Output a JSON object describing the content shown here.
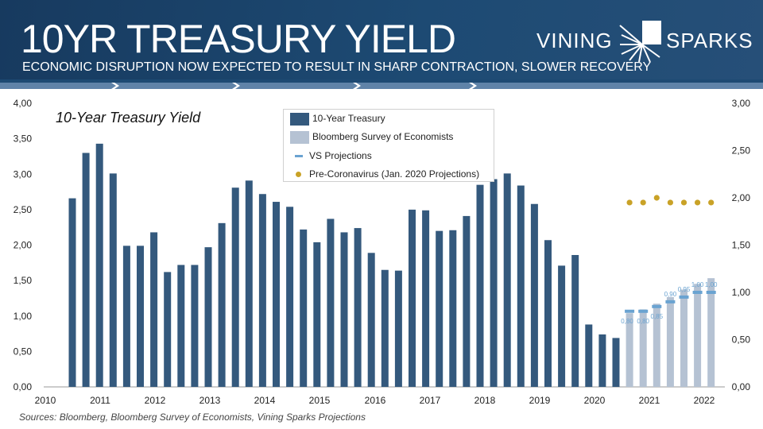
{
  "header": {
    "title": "10YR TREASURY YIELD",
    "subtitle": "ECONOMIC DISRUPTION NOW EXPECTED TO RESULT IN SHARP CONTRACTION, SLOWER RECOVERY",
    "logo_left": "VINING",
    "logo_right": "SPARKS"
  },
  "sources": "Sources: Bloomberg, Bloomberg Survey of Economists, Vining Sparks Projections",
  "colors": {
    "treasury": "#34597d",
    "survey": "#b5c2d3",
    "vs": "#6aa3d1",
    "pre": "#c9a227",
    "banner": "#1d4a73"
  },
  "chart_data": {
    "type": "bar",
    "title": "10-Year Treasury Yield",
    "legend": [
      "10-Year Treasury",
      "Bloomberg Survey of Economists",
      "VS Projections",
      "Pre-Coronavirus (Jan. 2020 Projections)"
    ],
    "left_axis": {
      "range": [
        0,
        4
      ],
      "ticks": [
        "0,00",
        "0,50",
        "1,00",
        "1,50",
        "2,00",
        "2,50",
        "3,00",
        "3,50",
        "4,00"
      ]
    },
    "right_axis": {
      "range": [
        0,
        3
      ],
      "ticks": [
        "0,00",
        "0,50",
        "1,00",
        "1,50",
        "2,00",
        "2,50",
        "3,00"
      ]
    },
    "x_axis": {
      "ticks": [
        "2010",
        "2011",
        "2012",
        "2013",
        "2014",
        "2015",
        "2016",
        "2017",
        "2018",
        "2019",
        "2020",
        "2021",
        "2022"
      ]
    },
    "treasury_quarterly": [
      2.66,
      3.3,
      3.43,
      3.01,
      1.99,
      1.99,
      2.18,
      1.62,
      1.72,
      1.72,
      1.97,
      2.31,
      2.81,
      2.91,
      2.72,
      2.61,
      2.54,
      2.22,
      2.04,
      2.37,
      2.18,
      2.24,
      1.89,
      1.65,
      1.64,
      2.5,
      2.49,
      2.2,
      2.21,
      2.41,
      2.85,
      2.93,
      3.01,
      2.84,
      2.58,
      2.07,
      1.71,
      1.86,
      0.88,
      0.74,
      0.69
    ],
    "survey_quarterly": [
      0.78,
      0.82,
      0.88,
      0.95,
      1.03,
      1.09,
      1.15
    ],
    "vs_projections": [
      0.8,
      0.8,
      0.85,
      0.9,
      0.95,
      1.0,
      1.0
    ],
    "vs_labels": [
      "0,80",
      "0,80",
      "0,85",
      "0,90",
      "0,95",
      "1,00",
      "1,00"
    ],
    "pre_coronavirus": [
      1.95,
      1.95,
      2.0,
      1.95,
      1.95,
      1.95,
      1.95
    ]
  }
}
